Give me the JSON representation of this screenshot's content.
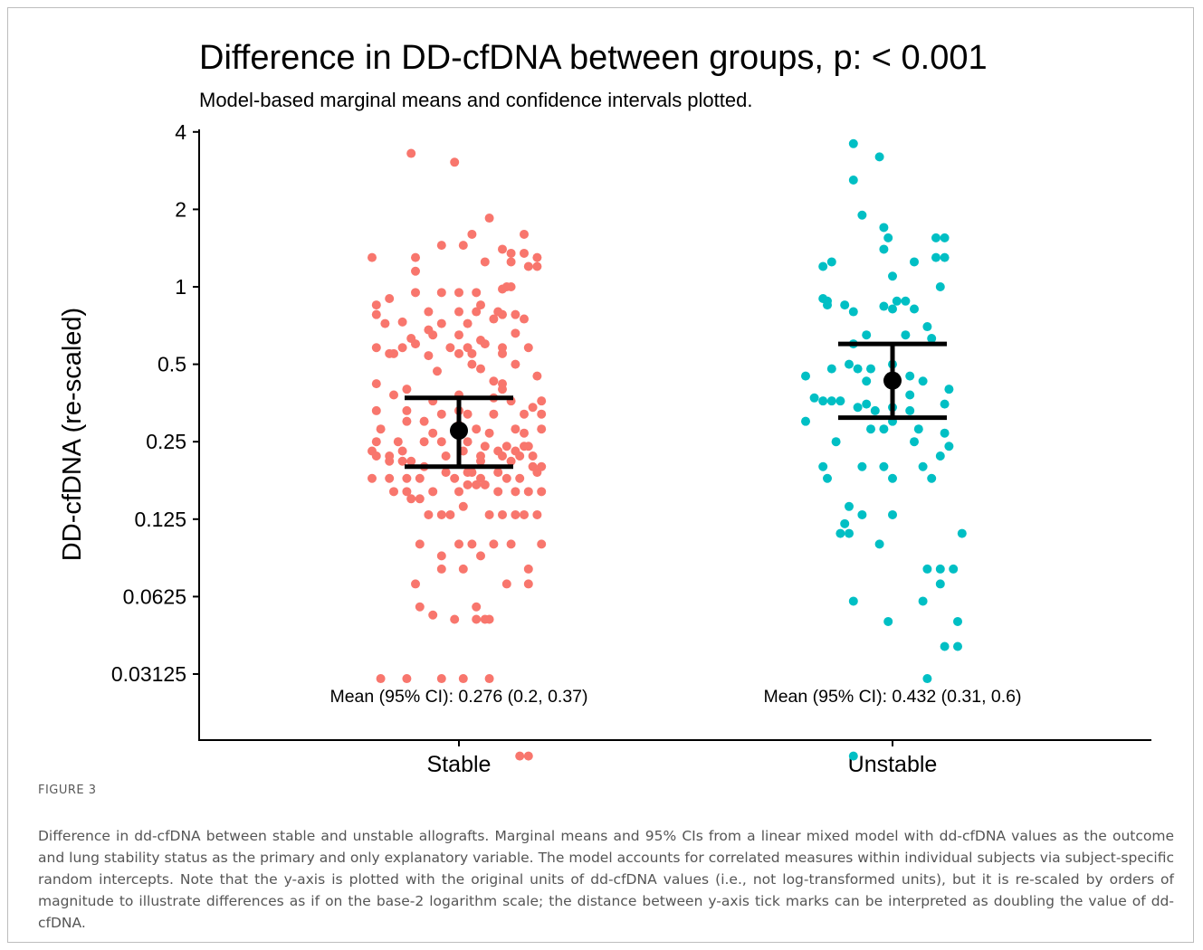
{
  "figure": {
    "label": "FIGURE 3",
    "caption": "Difference in dd-cfDNA between stable and unstable allografts. Marginal means and 95% CIs from a linear mixed model with dd-cfDNA values as the outcome and lung stability status as the primary and only explanatory variable. The model accounts for correlated measures within individual subjects via subject-specific random intercepts. Note that the y-axis is plotted with the original units of dd-cfDNA values (i.e., not log-transformed units), but it is re-scaled by orders of magnitude to illustrate differences as if on the base-2 logarithm scale; the distance between y-axis tick marks can be interpreted as doubling the value of dd-cfDNA."
  },
  "chart_data": {
    "type": "scatter",
    "title": "Difference in DD-cfDNA between groups, p: < 0.001",
    "subtitle": "Model-based marginal means and confidence intervals plotted.",
    "xlabel": "",
    "ylabel": "DD-cfDNA (re-scaled)",
    "y_scale": "log2",
    "ylim": [
      0.0095,
      4.3
    ],
    "y_ticks": [
      4,
      2,
      1,
      0.5,
      0.25,
      0.125,
      0.0625,
      0.03125
    ],
    "y_tick_labels": [
      "4",
      "2",
      "1",
      "0.5",
      "0.25",
      "0.125",
      "0.0625",
      "0.03125"
    ],
    "categories": [
      "Stable",
      "Unstable"
    ],
    "grid": false,
    "legend": "none",
    "colors": {
      "Stable": "#F8766D",
      "Unstable": "#00BFC4",
      "summary": "#000000",
      "axis": "#000000"
    },
    "summary": [
      {
        "group": "Stable",
        "mean": 0.276,
        "ci": [
          0.2,
          0.37
        ],
        "label": "Mean (95% CI): 0.276 (0.2, 0.37)"
      },
      {
        "group": "Unstable",
        "mean": 0.432,
        "ci": [
          0.31,
          0.6
        ],
        "label": "Mean (95% CI): 0.432 (0.31, 0.6)"
      }
    ],
    "series": [
      {
        "group": "Stable",
        "points": [
          [
            -0.11,
            3.3
          ],
          [
            -0.01,
            3.05
          ],
          [
            0.07,
            1.85
          ],
          [
            0.03,
            1.6
          ],
          [
            0.15,
            1.6
          ],
          [
            0.01,
            1.45
          ],
          [
            -0.04,
            1.45
          ],
          [
            0.1,
            1.4
          ],
          [
            0.15,
            1.35
          ],
          [
            0.12,
            1.35
          ],
          [
            -0.1,
            1.3
          ],
          [
            -0.2,
            1.3
          ],
          [
            0.12,
            1.25
          ],
          [
            0.06,
            1.25
          ],
          [
            0.18,
            1.3
          ],
          [
            0.18,
            1.2
          ],
          [
            -0.1,
            1.15
          ],
          [
            0.16,
            1.2
          ],
          [
            -0.1,
            0.95
          ],
          [
            -0.04,
            0.95
          ],
          [
            0.0,
            0.95
          ],
          [
            0.04,
            0.95
          ],
          [
            0.1,
            0.98
          ],
          [
            0.12,
            1.0
          ],
          [
            0.11,
            1.0
          ],
          [
            -0.16,
            0.9
          ],
          [
            0.05,
            0.85
          ],
          [
            -0.19,
            0.85
          ],
          [
            0.0,
            0.8
          ],
          [
            0.09,
            0.8
          ],
          [
            -0.07,
            0.8
          ],
          [
            0.04,
            0.8
          ],
          [
            0.1,
            0.78
          ],
          [
            0.13,
            0.78
          ],
          [
            -0.19,
            0.78
          ],
          [
            -0.13,
            0.73
          ],
          [
            0.15,
            0.75
          ],
          [
            0.08,
            0.75
          ],
          [
            -0.17,
            0.72
          ],
          [
            -0.04,
            0.72
          ],
          [
            0.02,
            0.72
          ],
          [
            -0.07,
            0.68
          ],
          [
            -0.11,
            0.63
          ],
          [
            0.13,
            0.66
          ],
          [
            0.0,
            0.65
          ],
          [
            -0.06,
            0.65
          ],
          [
            0.05,
            0.62
          ],
          [
            -0.1,
            0.6
          ],
          [
            -0.02,
            0.58
          ],
          [
            0.02,
            0.58
          ],
          [
            0.06,
            0.6
          ],
          [
            0.1,
            0.58
          ],
          [
            -0.19,
            0.58
          ],
          [
            -0.13,
            0.58
          ],
          [
            -0.15,
            0.55
          ],
          [
            -0.16,
            0.55
          ],
          [
            0.0,
            0.55
          ],
          [
            -0.07,
            0.54
          ],
          [
            0.03,
            0.55
          ],
          [
            0.1,
            0.55
          ],
          [
            0.16,
            0.58
          ],
          [
            0.03,
            0.5
          ],
          [
            0.13,
            0.5
          ],
          [
            0.05,
            0.48
          ],
          [
            -0.05,
            0.47
          ],
          [
            -0.19,
            0.42
          ],
          [
            0.08,
            0.43
          ],
          [
            0.1,
            0.42
          ],
          [
            0.18,
            0.45
          ],
          [
            -0.12,
            0.4
          ],
          [
            0.1,
            0.4
          ],
          [
            -0.15,
            0.38
          ],
          [
            0.0,
            0.38
          ],
          [
            0.08,
            0.37
          ],
          [
            0.12,
            0.36
          ],
          [
            0.19,
            0.36
          ],
          [
            -0.06,
            0.36
          ],
          [
            0.0,
            0.33
          ],
          [
            -0.04,
            0.32
          ],
          [
            0.08,
            0.32
          ],
          [
            0.02,
            0.32
          ],
          [
            -0.19,
            0.33
          ],
          [
            0.15,
            0.32
          ],
          [
            -0.12,
            0.33
          ],
          [
            0.17,
            0.34
          ],
          [
            0.19,
            0.32
          ],
          [
            -0.12,
            0.3
          ],
          [
            -0.08,
            0.3
          ],
          [
            0.0,
            0.29
          ],
          [
            0.04,
            0.28
          ],
          [
            0.13,
            0.28
          ],
          [
            0.15,
            0.27
          ],
          [
            -0.18,
            0.28
          ],
          [
            0.07,
            0.27
          ],
          [
            0.19,
            0.28
          ],
          [
            -0.06,
            0.27
          ],
          [
            -0.19,
            0.25
          ],
          [
            -0.14,
            0.25
          ],
          [
            -0.08,
            0.25
          ],
          [
            -0.04,
            0.25
          ],
          [
            0.02,
            0.25
          ],
          [
            0.06,
            0.24
          ],
          [
            0.11,
            0.24
          ],
          [
            0.15,
            0.24
          ],
          [
            0.16,
            0.24
          ],
          [
            -0.2,
            0.23
          ],
          [
            -0.13,
            0.23
          ],
          [
            0.09,
            0.23
          ],
          [
            0.13,
            0.23
          ],
          [
            0.01,
            0.23
          ],
          [
            -0.19,
            0.22
          ],
          [
            -0.16,
            0.22
          ],
          [
            -0.03,
            0.22
          ],
          [
            0.05,
            0.22
          ],
          [
            0.1,
            0.22
          ],
          [
            0.14,
            0.22
          ],
          [
            0.17,
            0.22
          ],
          [
            -0.08,
            0.2
          ],
          [
            -0.11,
            0.21
          ],
          [
            -0.16,
            0.21
          ],
          [
            0.19,
            0.2
          ],
          [
            0.05,
            0.21
          ],
          [
            -0.13,
            0.21
          ],
          [
            0.12,
            0.21
          ],
          [
            0.17,
            0.2
          ],
          [
            -0.03,
            0.19
          ],
          [
            0.03,
            0.19
          ],
          [
            -0.12,
            0.18
          ],
          [
            0.09,
            0.19
          ],
          [
            0.02,
            0.19
          ],
          [
            -0.01,
            0.18
          ],
          [
            0.05,
            0.18
          ],
          [
            -0.16,
            0.18
          ],
          [
            -0.2,
            0.18
          ],
          [
            0.14,
            0.18
          ],
          [
            0.18,
            0.19
          ],
          [
            0.11,
            0.18
          ],
          [
            -0.09,
            0.18
          ],
          [
            0.04,
            0.17
          ],
          [
            0.02,
            0.17
          ],
          [
            -0.06,
            0.16
          ],
          [
            0.0,
            0.16
          ],
          [
            0.06,
            0.17
          ],
          [
            0.09,
            0.16
          ],
          [
            -0.12,
            0.16
          ],
          [
            -0.15,
            0.16
          ],
          [
            0.16,
            0.16
          ],
          [
            0.19,
            0.16
          ],
          [
            0.13,
            0.16
          ],
          [
            -0.11,
            0.15
          ],
          [
            -0.09,
            0.15
          ],
          [
            0.01,
            0.14
          ],
          [
            0.07,
            0.13
          ],
          [
            -0.07,
            0.13
          ],
          [
            -0.02,
            0.13
          ],
          [
            0.1,
            0.13
          ],
          [
            0.15,
            0.13
          ],
          [
            0.13,
            0.13
          ],
          [
            0.18,
            0.13
          ],
          [
            -0.04,
            0.13
          ],
          [
            0.0,
            0.1
          ],
          [
            0.03,
            0.1
          ],
          [
            -0.09,
            0.1
          ],
          [
            0.08,
            0.1
          ],
          [
            0.12,
            0.1
          ],
          [
            0.19,
            0.1
          ],
          [
            -0.04,
            0.09
          ],
          [
            0.05,
            0.09
          ],
          [
            -0.04,
            0.08
          ],
          [
            0.01,
            0.08
          ],
          [
            0.16,
            0.08
          ],
          [
            -0.1,
            0.07
          ],
          [
            0.11,
            0.07
          ],
          [
            0.16,
            0.07
          ],
          [
            -0.09,
            0.057
          ],
          [
            0.04,
            0.057
          ],
          [
            -0.06,
            0.053
          ],
          [
            -0.01,
            0.051
          ],
          [
            0.04,
            0.051
          ],
          [
            0.06,
            0.051
          ],
          [
            0.07,
            0.051
          ],
          [
            -0.18,
            0.03
          ],
          [
            -0.12,
            0.03
          ],
          [
            -0.04,
            0.03
          ],
          [
            0.01,
            0.03
          ],
          [
            0.07,
            0.03
          ],
          [
            0.14,
            0.015
          ],
          [
            0.16,
            0.015
          ],
          [
            -0.11,
            0.01
          ]
        ]
      },
      {
        "group": "Unstable",
        "points": [
          [
            -0.09,
            3.6
          ],
          [
            -0.03,
            3.2
          ],
          [
            -0.09,
            2.6
          ],
          [
            -0.07,
            1.9
          ],
          [
            -0.02,
            1.7
          ],
          [
            -0.01,
            1.55
          ],
          [
            0.1,
            1.55
          ],
          [
            0.12,
            1.55
          ],
          [
            -0.02,
            1.4
          ],
          [
            -0.14,
            1.25
          ],
          [
            0.05,
            1.25
          ],
          [
            0.1,
            1.3
          ],
          [
            0.12,
            1.3
          ],
          [
            -0.16,
            1.2
          ],
          [
            0.0,
            1.1
          ],
          [
            0.11,
            1.0
          ],
          [
            -0.16,
            0.9
          ],
          [
            -0.15,
            0.88
          ],
          [
            0.01,
            0.88
          ],
          [
            0.03,
            0.88
          ],
          [
            -0.15,
            0.85
          ],
          [
            -0.11,
            0.85
          ],
          [
            -0.09,
            0.8
          ],
          [
            -0.02,
            0.84
          ],
          [
            0.0,
            0.82
          ],
          [
            0.05,
            0.82
          ],
          [
            0.08,
            0.7
          ],
          [
            -0.09,
            0.6
          ],
          [
            -0.06,
            0.65
          ],
          [
            0.03,
            0.65
          ],
          [
            0.09,
            0.63
          ],
          [
            -0.1,
            0.5
          ],
          [
            -0.14,
            0.48
          ],
          [
            -0.08,
            0.48
          ],
          [
            -0.05,
            0.48
          ],
          [
            0.0,
            0.5
          ],
          [
            0.04,
            0.45
          ],
          [
            -0.2,
            0.45
          ],
          [
            -0.06,
            0.43
          ],
          [
            0.07,
            0.43
          ],
          [
            0.13,
            0.4
          ],
          [
            0.04,
            0.38
          ],
          [
            -0.16,
            0.36
          ],
          [
            -0.14,
            0.36
          ],
          [
            -0.12,
            0.36
          ],
          [
            -0.18,
            0.37
          ],
          [
            -0.06,
            0.35
          ],
          [
            0.12,
            0.35
          ],
          [
            -0.08,
            0.34
          ],
          [
            0.0,
            0.34
          ],
          [
            -0.04,
            0.33
          ],
          [
            0.04,
            0.33
          ],
          [
            -0.2,
            0.3
          ],
          [
            0.0,
            0.3
          ],
          [
            0.06,
            0.28
          ],
          [
            0.12,
            0.27
          ],
          [
            -0.05,
            0.28
          ],
          [
            -0.02,
            0.28
          ],
          [
            0.05,
            0.25
          ],
          [
            -0.13,
            0.25
          ],
          [
            0.13,
            0.24
          ],
          [
            0.11,
            0.22
          ],
          [
            -0.16,
            0.2
          ],
          [
            -0.02,
            0.2
          ],
          [
            -0.07,
            0.2
          ],
          [
            0.07,
            0.2
          ],
          [
            -0.15,
            0.18
          ],
          [
            0.0,
            0.18
          ],
          [
            0.09,
            0.18
          ],
          [
            -0.1,
            0.14
          ],
          [
            -0.07,
            0.13
          ],
          [
            0.0,
            0.13
          ],
          [
            -0.11,
            0.12
          ],
          [
            -0.1,
            0.11
          ],
          [
            -0.12,
            0.11
          ],
          [
            0.16,
            0.11
          ],
          [
            -0.03,
            0.1
          ],
          [
            0.08,
            0.08
          ],
          [
            0.11,
            0.08
          ],
          [
            0.14,
            0.08
          ],
          [
            0.11,
            0.07
          ],
          [
            -0.09,
            0.06
          ],
          [
            0.07,
            0.06
          ],
          [
            -0.01,
            0.05
          ],
          [
            0.15,
            0.05
          ],
          [
            0.12,
            0.04
          ],
          [
            0.15,
            0.04
          ],
          [
            0.08,
            0.03
          ],
          [
            -0.09,
            0.015
          ]
        ]
      }
    ]
  }
}
